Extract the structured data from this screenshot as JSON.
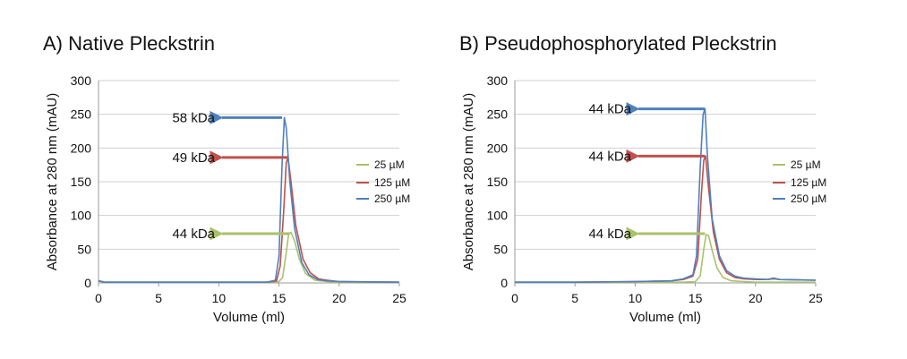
{
  "colors": {
    "25 µM": "#a9c26a",
    "125 µM": "#c0504d",
    "250 µM": "#4f81bd",
    "grid": "#d0d0d0",
    "axis": "#9a9a9a"
  },
  "chart_data": [
    {
      "type": "line",
      "title": "A) Native Pleckstrin",
      "xlabel": "Volume (ml)",
      "ylabel": "Absorbance at 280 nm (mAU)",
      "xlim": [
        0,
        25
      ],
      "ylim": [
        0,
        300
      ],
      "xticks": [
        0,
        5,
        10,
        15,
        20,
        25
      ],
      "yticks": [
        0,
        50,
        100,
        150,
        200,
        250,
        300
      ],
      "grid": "horizontal",
      "legend": "right",
      "series": [
        {
          "name": "25 µM",
          "x": [
            0,
            0.5,
            1,
            5,
            10,
            14,
            15,
            15.3,
            15.6,
            15.8,
            16.0,
            16.3,
            16.7,
            17.2,
            18,
            19,
            20,
            25
          ],
          "y": [
            3,
            1,
            1,
            1,
            1,
            1,
            2,
            8,
            45,
            73,
            75,
            62,
            35,
            14,
            4,
            2,
            1,
            1
          ]
        },
        {
          "name": "125 µM",
          "x": [
            0,
            0.5,
            1,
            5,
            10,
            14,
            14.8,
            15.1,
            15.4,
            15.6,
            15.75,
            16.0,
            16.4,
            17.0,
            17.6,
            18.3,
            19,
            20,
            25
          ],
          "y": [
            3,
            1,
            1,
            1,
            1,
            1,
            3,
            25,
            110,
            178,
            186,
            150,
            85,
            35,
            15,
            6,
            4,
            2,
            1
          ]
        },
        {
          "name": "250 µM",
          "x": [
            0,
            0.5,
            1,
            5,
            10,
            14,
            14.7,
            15.0,
            15.25,
            15.45,
            15.6,
            15.9,
            16.3,
            16.9,
            17.5,
            18.2,
            19,
            20,
            25
          ],
          "y": [
            3,
            1,
            1,
            1,
            1,
            1,
            4,
            40,
            175,
            245,
            230,
            150,
            80,
            30,
            12,
            5,
            3,
            2,
            1
          ]
        }
      ],
      "annotations": [
        {
          "text": "58 kDa",
          "y": 245,
          "series": "250 µM",
          "from_x": 15.25
        },
        {
          "text": "49 kDa",
          "y": 186,
          "series": "125 µM",
          "from_x": 15.7
        },
        {
          "text": "44 kDa",
          "y": 73,
          "series": "25 µM",
          "from_x": 15.9
        }
      ]
    },
    {
      "type": "line",
      "title": "B) Pseudophosphorylated Pleckstrin",
      "xlabel": "Volume (ml)",
      "ylabel": "Absorbance at 280 nm (mAU)",
      "xlim": [
        0,
        25
      ],
      "ylim": [
        0,
        300
      ],
      "xticks": [
        0,
        5,
        10,
        15,
        20,
        25
      ],
      "yticks": [
        0,
        50,
        100,
        150,
        200,
        250,
        300
      ],
      "grid": "horizontal",
      "legend": "right",
      "series": [
        {
          "name": "25 µM",
          "x": [
            0,
            5,
            10,
            14,
            15,
            15.4,
            15.7,
            15.9,
            16.1,
            16.4,
            16.8,
            17.3,
            18,
            19,
            20,
            25
          ],
          "y": [
            1,
            1,
            1,
            1,
            2,
            10,
            50,
            72,
            70,
            48,
            22,
            8,
            3,
            2,
            1,
            1
          ]
        },
        {
          "name": "125 µM",
          "x": [
            0,
            5,
            10,
            13,
            14,
            14.8,
            15.2,
            15.5,
            15.7,
            15.85,
            16.1,
            16.5,
            17.0,
            17.6,
            18.3,
            19,
            20,
            21,
            21.5,
            22,
            25
          ],
          "y": [
            1,
            1,
            2,
            3,
            5,
            10,
            35,
            130,
            182,
            188,
            140,
            75,
            35,
            15,
            8,
            6,
            5,
            5,
            7,
            5,
            4
          ]
        },
        {
          "name": "250 µM",
          "x": [
            0,
            5,
            10,
            13,
            14,
            14.8,
            15.1,
            15.4,
            15.65,
            15.8,
            16.0,
            16.4,
            17.0,
            17.6,
            18.3,
            19,
            20,
            21,
            21.5,
            22,
            25
          ],
          "y": [
            1,
            1,
            2,
            3,
            6,
            12,
            40,
            170,
            250,
            258,
            190,
            95,
            40,
            18,
            10,
            7,
            6,
            5,
            6,
            5,
            4
          ]
        }
      ],
      "annotations": [
        {
          "text": "44 kDa",
          "y": 258,
          "series": "250 µM",
          "from_x": 15.8
        },
        {
          "text": "44 kDa",
          "y": 188,
          "series": "125 µM",
          "from_x": 15.8
        },
        {
          "text": "44 kDa",
          "y": 73,
          "series": "25 µM",
          "from_x": 15.8
        }
      ]
    }
  ]
}
